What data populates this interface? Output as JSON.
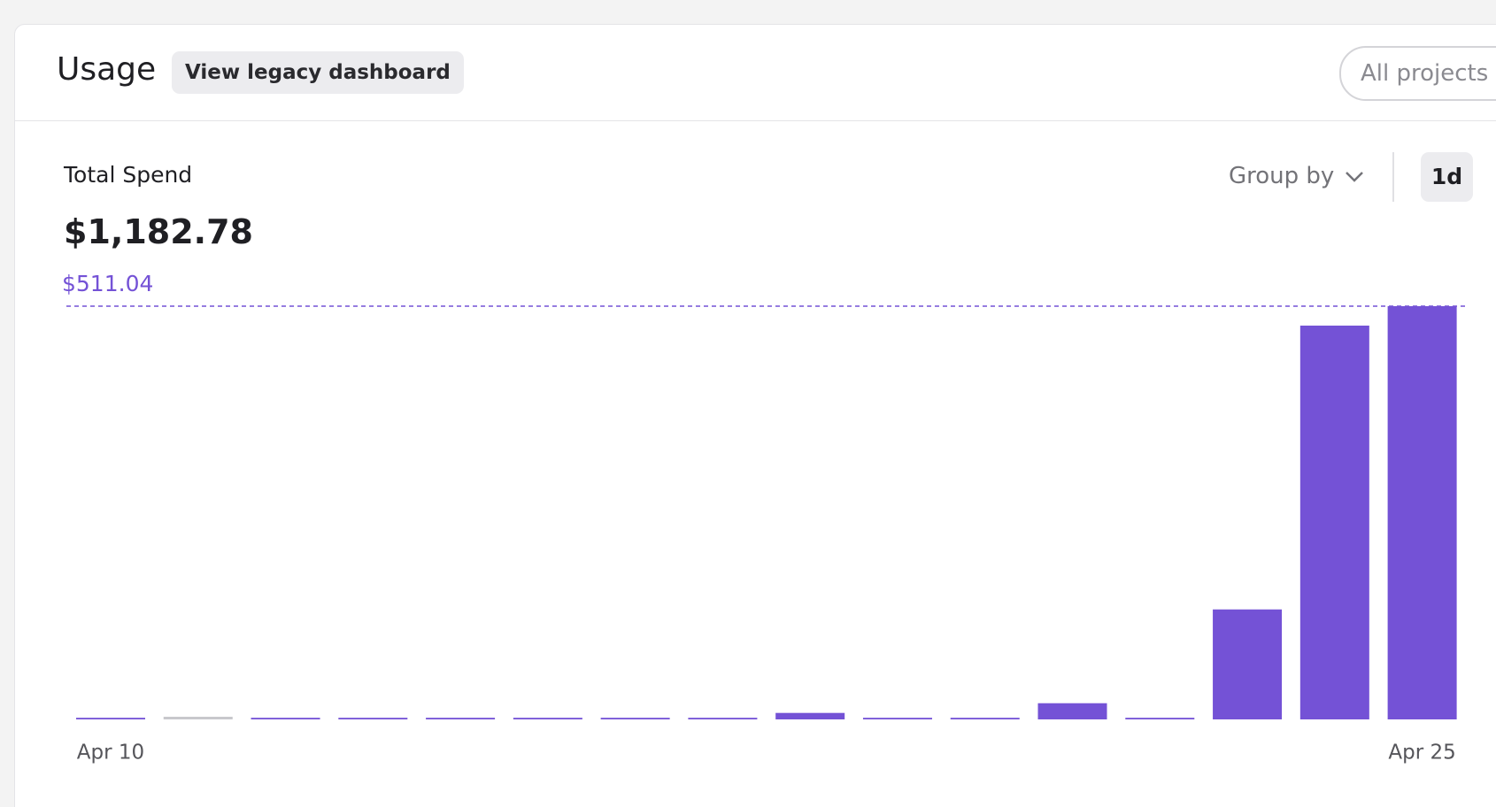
{
  "header": {
    "title": "Usage",
    "legacy_button": "View legacy dashboard",
    "project_selector": "All projects"
  },
  "summary": {
    "label": "Total Spend",
    "total": "$1,182.78"
  },
  "controls": {
    "group_by": "Group by",
    "interval": "1d"
  },
  "chart_data": {
    "type": "bar",
    "categories": [
      "Apr 10",
      null,
      null,
      null,
      null,
      null,
      null,
      null,
      null,
      null,
      null,
      null,
      null,
      null,
      null,
      "Apr 25"
    ],
    "values": [
      2,
      0,
      2,
      2,
      2,
      2,
      2,
      2,
      8,
      2,
      2,
      20,
      2,
      136,
      487,
      511.04
    ],
    "color": "#7452d6",
    "zero_color": "#c8c8cc",
    "ylim": [
      0,
      511.04
    ],
    "reference_line": {
      "value": 511.04,
      "label": "$511.04"
    }
  }
}
